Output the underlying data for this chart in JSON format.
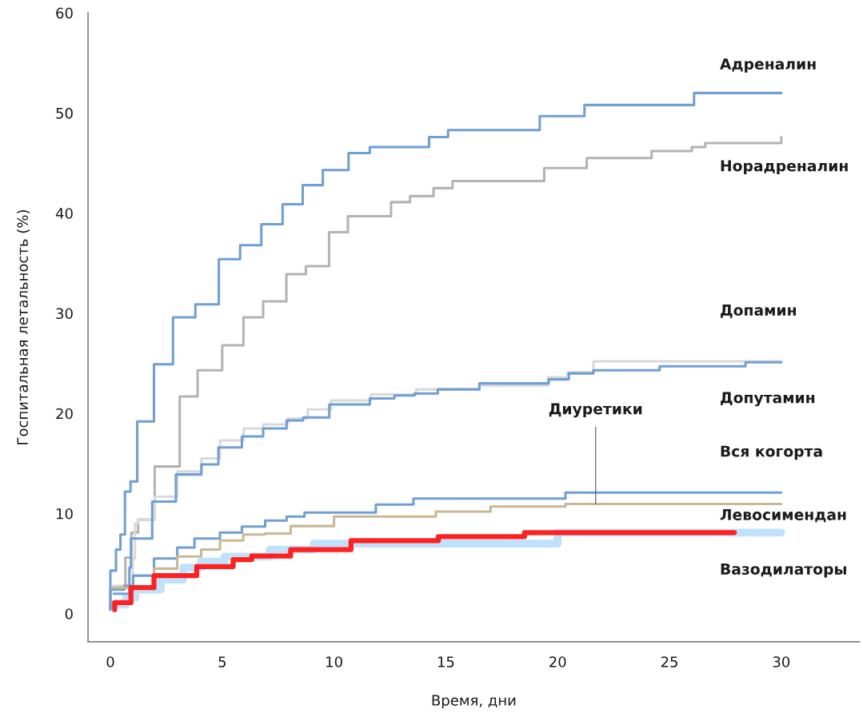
{
  "chart_data": {
    "type": "step",
    "xlabel": "Время, дни",
    "ylabel": "Госпитальная летальность (%)",
    "xlim": [
      -1,
      33.5
    ],
    "ylim": [
      -2.8,
      60
    ],
    "xticks": [
      0,
      5,
      10,
      15,
      20,
      25,
      30
    ],
    "yticks": [
      0,
      10,
      20,
      30,
      40,
      50,
      60
    ],
    "grid": false,
    "legend": false,
    "series": [
      {
        "name": "Вазодилаторы",
        "color": "#bfe1fb",
        "x": [
          0.13,
          0.7,
          1.12,
          2.25,
          3.26,
          4.04,
          5.1,
          7.13,
          9.1,
          20.0,
          30
        ],
        "values": [
          0.9,
          1.6,
          2.4,
          3.4,
          4.6,
          5.2,
          5.7,
          6.4,
          7.0,
          8.1,
          8.1
        ]
      },
      {
        "name": "Адреналин",
        "color": "#6f9fd4",
        "x": [
          0,
          0,
          0.25,
          0.45,
          0.65,
          0.9,
          1.2,
          1.95,
          2.8,
          3.8,
          4.85,
          5.8,
          6.75,
          7.7,
          8.6,
          9.5,
          10.65,
          11.6,
          14.25,
          15.1,
          19.2,
          21.2,
          26.1,
          30
        ],
        "values": [
          0.4,
          4.3,
          6.4,
          7.9,
          12.2,
          13.2,
          19.2,
          24.9,
          29.6,
          30.9,
          35.4,
          36.8,
          38.9,
          40.9,
          42.8,
          44.3,
          46.0,
          46.6,
          47.6,
          48.3,
          49.7,
          50.8,
          52.0,
          52.0
        ]
      },
      {
        "name": "Норадреналин",
        "color": "#b3b3b3",
        "x": [
          0.13,
          0.67,
          0.94,
          1.24,
          1.98,
          3.1,
          3.9,
          5.0,
          5.95,
          6.83,
          7.87,
          8.74,
          9.78,
          10.62,
          12.55,
          13.4,
          14.45,
          15.3,
          19.4,
          21.3,
          24.2,
          26.0,
          26.6,
          30,
          30
        ],
        "values": [
          2.6,
          5.6,
          8.1,
          9.4,
          14.7,
          21.7,
          24.3,
          26.8,
          29.6,
          31.2,
          33.9,
          34.7,
          38.1,
          39.7,
          41.1,
          41.7,
          42.5,
          43.2,
          44.5,
          45.5,
          46.2,
          46.6,
          47.0,
          47.0,
          47.6
        ]
      },
      {
        "name": "Допамин",
        "color": "#d9d9d9",
        "x": [
          0.13,
          1.0,
          1.1,
          1.25,
          1.98,
          2.99,
          4.07,
          4.9,
          5.96,
          6.83,
          7.94,
          8.82,
          9.87,
          11.65,
          13.67,
          16.5,
          19.57,
          20.44,
          21.6,
          30
        ],
        "values": [
          2.8,
          5.5,
          9.0,
          9.4,
          11.7,
          14.2,
          15.5,
          17.3,
          18.5,
          18.9,
          19.5,
          20.4,
          21.3,
          21.9,
          22.4,
          22.8,
          23.6,
          24.1,
          25.2,
          25.2
        ]
      },
      {
        "name": "Допутамин",
        "color": "#6f9fd4",
        "x": [
          0.15,
          0.85,
          0.92,
          1.87,
          2.93,
          4.07,
          4.83,
          5.88,
          6.83,
          7.88,
          8.62,
          9.79,
          11.6,
          12.7,
          13.6,
          14.64,
          16.5,
          19.6,
          20.5,
          21.6,
          24.56,
          28.4,
          30
        ],
        "values": [
          2.0,
          4.6,
          7.5,
          11.2,
          13.9,
          14.9,
          16.6,
          17.7,
          18.5,
          19.3,
          19.6,
          20.9,
          21.5,
          21.8,
          22.0,
          22.4,
          23.0,
          23.4,
          24.0,
          24.3,
          24.7,
          25.1,
          25.1
        ]
      },
      {
        "name": "Вся когорта",
        "color": "#6f9fd4",
        "x": [
          0,
          0,
          0.62,
          1.02,
          1.95,
          2.99,
          3.76,
          4.9,
          5.88,
          6.92,
          7.88,
          8.68,
          11.87,
          13.55,
          20.35,
          30
        ],
        "values": [
          0.4,
          2.4,
          2.8,
          3.8,
          5.5,
          6.6,
          7.5,
          8.1,
          8.7,
          9.3,
          9.7,
          10.1,
          10.9,
          11.5,
          12.1,
          12.1
        ]
      },
      {
        "color": "#c8b994",
        "x": [
          0.2,
          1.95,
          2.99,
          4.06,
          4.9,
          5.94,
          6.9,
          8.06,
          10.0,
          14.55,
          17.0,
          20.35,
          30
        ],
        "values": [
          2.6,
          4.5,
          5.7,
          6.4,
          7.3,
          7.9,
          8.0,
          8.75,
          9.7,
          10.2,
          10.7,
          10.95,
          10.95
        ]
      },
      {
        "name": "Левосимендан",
        "color": "#ff2020",
        "x": [
          0.19,
          0.19,
          0.92,
          1.95,
          3.86,
          5.49,
          6.32,
          8.06,
          10.76,
          14.67,
          18.52,
          27.9
        ],
        "values": [
          0.4,
          1.1,
          2.6,
          3.8,
          4.7,
          5.4,
          5.75,
          6.4,
          7.3,
          7.7,
          8.1,
          8.1
        ]
      }
    ],
    "annotations": [
      {
        "text": "Диуретики",
        "x": 21.7,
        "y": 10.95
      }
    ]
  }
}
